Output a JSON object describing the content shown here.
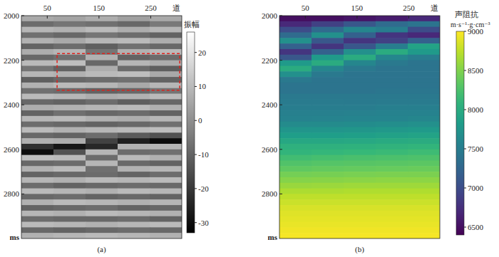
{
  "chart_data": [
    {
      "type": "heatmap",
      "title": "(a)",
      "x_label": "道",
      "y_label": "ms",
      "color": "gray",
      "x": [
        0,
        62,
        124,
        186,
        248
      ],
      "xlim": [
        0,
        310
      ],
      "xticks": [
        50,
        150,
        250
      ],
      "y": [
        2000,
        2025,
        2050,
        2075,
        2100,
        2125,
        2150,
        2175,
        2200,
        2225,
        2250,
        2275,
        2300,
        2325,
        2350,
        2375,
        2400,
        2425,
        2450,
        2475,
        2500,
        2525,
        2550,
        2575,
        2600,
        2625,
        2650,
        2675,
        2700,
        2725,
        2750,
        2775,
        2800,
        2825,
        2850,
        2875,
        2900,
        2925,
        2950,
        2975
      ],
      "ylim": [
        2000,
        3000
      ],
      "yticks": [
        2000,
        2200,
        2400,
        2600,
        2800
      ],
      "cells": [
        [
          6,
          5,
          7,
          4,
          6
        ],
        [
          -8,
          -6,
          -7,
          -9,
          -5
        ],
        [
          9,
          8,
          10,
          7,
          9
        ],
        [
          -7,
          -9,
          -6,
          -8,
          -10
        ],
        [
          8,
          6,
          9,
          10,
          7
        ],
        [
          -10,
          -8,
          -11,
          -7,
          -9
        ],
        [
          7,
          9,
          -6,
          8,
          10
        ],
        [
          -9,
          -7,
          8,
          -10,
          -8
        ],
        [
          10,
          11,
          -9,
          9,
          7
        ],
        [
          -6,
          -10,
          7,
          -8,
          -11
        ],
        [
          9,
          8,
          10,
          11,
          6
        ],
        [
          -11,
          -9,
          -8,
          -7,
          -10
        ],
        [
          8,
          10,
          9,
          6,
          9
        ],
        [
          -7,
          -8,
          -10,
          -9,
          -6
        ],
        [
          10,
          9,
          7,
          8,
          10
        ],
        [
          -9,
          -10,
          -8,
          -11,
          -9
        ],
        [
          7,
          8,
          9,
          10,
          8
        ],
        [
          -10,
          -7,
          -9,
          -8,
          -10
        ],
        [
          9,
          10,
          8,
          7,
          9
        ],
        [
          -8,
          -9,
          -10,
          -9,
          -7
        ],
        [
          10,
          8,
          9,
          10,
          11
        ],
        [
          -9,
          -10,
          -8,
          -12,
          -14
        ],
        [
          8,
          7,
          -18,
          -26,
          -30
        ],
        [
          -22,
          -28,
          -24,
          8,
          9
        ],
        [
          -30,
          -14,
          9,
          -8,
          -7
        ],
        [
          11,
          10,
          -8,
          10,
          8
        ],
        [
          -9,
          -8,
          9,
          -9,
          -10
        ],
        [
          8,
          10,
          -7,
          8,
          9
        ],
        [
          -10,
          -9,
          -8,
          -10,
          -8
        ],
        [
          9,
          8,
          10,
          9,
          10
        ],
        [
          -8,
          -10,
          -9,
          -8,
          -9
        ],
        [
          10,
          9,
          8,
          10,
          9
        ],
        [
          -9,
          -8,
          -10,
          -9,
          -10
        ],
        [
          8,
          10,
          9,
          8,
          9
        ],
        [
          -10,
          -9,
          -8,
          -10,
          -9
        ],
        [
          9,
          8,
          10,
          9,
          8
        ],
        [
          -8,
          -9,
          -9,
          -8,
          -10
        ],
        [
          10,
          9,
          8,
          9,
          10
        ],
        [
          -9,
          -10,
          -9,
          -8,
          -9
        ],
        [
          8,
          9,
          10,
          9,
          8
        ]
      ],
      "colorbar": {
        "title": "振幅",
        "range": [
          -33,
          26
        ],
        "ticks": [
          20,
          10,
          0,
          -10,
          -20,
          -30
        ]
      },
      "highlight": {
        "x": [
          69,
          306
        ],
        "y": [
          2170,
          2335
        ]
      }
    },
    {
      "type": "heatmap",
      "title": "(b)",
      "x_label": "道",
      "y_label": "ms",
      "color": "viridis",
      "x": [
        0,
        62,
        124,
        186,
        248
      ],
      "xlim": [
        0,
        310
      ],
      "xticks": [
        50,
        150,
        250
      ],
      "y": [
        2000,
        2025,
        2050,
        2075,
        2100,
        2125,
        2150,
        2175,
        2200,
        2225,
        2250,
        2275,
        2300,
        2325,
        2350,
        2375,
        2400,
        2425,
        2450,
        2475,
        2500,
        2525,
        2550,
        2575,
        2600,
        2625,
        2650,
        2675,
        2700,
        2725,
        2750,
        2775,
        2800,
        2825,
        2850,
        2875,
        2900,
        2925,
        2950,
        2975
      ],
      "ylim": [
        2000,
        3000
      ],
      "yticks": [
        2000,
        2200,
        2400,
        2600,
        2800
      ],
      "cells": [
        [
          6500,
          6500,
          6550,
          6600,
          6700
        ],
        [
          6700,
          6900,
          7100,
          7300,
          7400
        ],
        [
          7000,
          7300,
          7600,
          7500,
          7000
        ],
        [
          7300,
          7700,
          7200,
          6800,
          6700
        ],
        [
          7700,
          7100,
          6800,
          6900,
          7200
        ],
        [
          7200,
          6800,
          7100,
          7500,
          7900
        ],
        [
          6800,
          7200,
          7700,
          8000,
          7800
        ],
        [
          7100,
          7800,
          8000,
          7600,
          7500
        ],
        [
          7800,
          8000,
          7600,
          7450,
          7400
        ],
        [
          8000,
          7600,
          7450,
          7400,
          7400
        ],
        [
          7700,
          7450,
          7400,
          7400,
          7400
        ],
        [
          7450,
          7400,
          7400,
          7400,
          7400
        ],
        [
          7400,
          7400,
          7400,
          7400,
          7400
        ],
        [
          7400,
          7400,
          7400,
          7420,
          7420
        ],
        [
          7450,
          7450,
          7450,
          7450,
          7450
        ],
        [
          7480,
          7480,
          7470,
          7480,
          7480
        ],
        [
          7500,
          7500,
          7500,
          7520,
          7520
        ],
        [
          7530,
          7530,
          7540,
          7550,
          7550
        ],
        [
          7560,
          7570,
          7580,
          7580,
          7600
        ],
        [
          7650,
          7650,
          7660,
          7680,
          7700
        ],
        [
          7750,
          7750,
          7760,
          7780,
          7800
        ],
        [
          7850,
          7850,
          7860,
          7880,
          7900
        ],
        [
          7950,
          7950,
          7960,
          7980,
          8000
        ],
        [
          8050,
          8050,
          8060,
          8080,
          8100
        ],
        [
          8100,
          8120,
          8140,
          8160,
          8180
        ],
        [
          8200,
          8220,
          8240,
          8250,
          8260
        ],
        [
          8280,
          8300,
          8310,
          8320,
          8330
        ],
        [
          8350,
          8370,
          8380,
          8390,
          8400
        ],
        [
          8450,
          8460,
          8470,
          8480,
          8480
        ],
        [
          8520,
          8530,
          8540,
          8550,
          8550
        ],
        [
          8600,
          8610,
          8620,
          8620,
          8620
        ],
        [
          8680,
          8680,
          8690,
          8690,
          8690
        ],
        [
          8750,
          8750,
          8750,
          8750,
          8750
        ],
        [
          8800,
          8800,
          8800,
          8800,
          8800
        ],
        [
          8850,
          8850,
          8850,
          8850,
          8850
        ],
        [
          8880,
          8880,
          8880,
          8880,
          8880
        ],
        [
          8900,
          8900,
          8900,
          8900,
          8900
        ],
        [
          8920,
          8920,
          8920,
          8920,
          8920
        ],
        [
          8950,
          8950,
          8950,
          8950,
          8950
        ],
        [
          8970,
          8970,
          8970,
          8970,
          8970
        ]
      ],
      "colorbar": {
        "title": "声阻抗",
        "unit": "m·s⁻¹·g·cm⁻³",
        "range": [
          6400,
          9000
        ],
        "ticks": [
          6500,
          7000,
          7500,
          8000,
          8500,
          9000
        ]
      }
    }
  ]
}
